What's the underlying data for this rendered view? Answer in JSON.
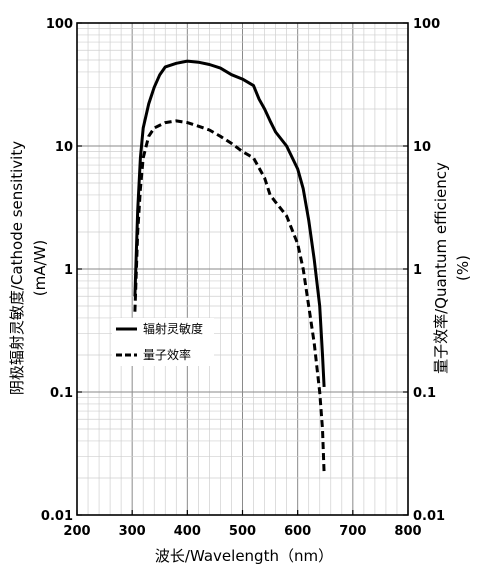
{
  "chart_data": {
    "type": "line",
    "xlabel": "波长/Wavelength（nm）",
    "ylabel_left_line1": "阴极辐射灵敏度/Cathode sensitivity",
    "ylabel_left_line2": "(mA/W)",
    "ylabel_right_line1": "量子效率/Quantum efficiency",
    "ylabel_right_line2": "(%)",
    "xlim": [
      200,
      800
    ],
    "ylim": [
      0.01,
      100
    ],
    "yscale": "log",
    "grid": true,
    "legend_position": "center-left",
    "x_ticks": [
      "200",
      "300",
      "400",
      "500",
      "600",
      "700",
      "800"
    ],
    "y_ticks_left": [
      "0.01",
      "0.1",
      "1",
      "10",
      "100"
    ],
    "y_ticks_right": [
      "0.01",
      "0.1",
      "1",
      "10",
      "100"
    ],
    "series": [
      {
        "name": "辐射灵敏度",
        "style": "solid",
        "color": "#000000",
        "points": [
          [
            305,
            0.6
          ],
          [
            310,
            3
          ],
          [
            315,
            8
          ],
          [
            320,
            14
          ],
          [
            330,
            22
          ],
          [
            340,
            30
          ],
          [
            350,
            38
          ],
          [
            360,
            44
          ],
          [
            380,
            47
          ],
          [
            400,
            49
          ],
          [
            420,
            48
          ],
          [
            440,
            46
          ],
          [
            460,
            43
          ],
          [
            480,
            38
          ],
          [
            500,
            35
          ],
          [
            520,
            31
          ],
          [
            530,
            24
          ],
          [
            540,
            20
          ],
          [
            550,
            16
          ],
          [
            560,
            13
          ],
          [
            580,
            10
          ],
          [
            600,
            6.5
          ],
          [
            610,
            4.5
          ],
          [
            620,
            2.5
          ],
          [
            630,
            1.2
          ],
          [
            640,
            0.5
          ],
          [
            645,
            0.2
          ],
          [
            648,
            0.11
          ]
        ]
      },
      {
        "name": "量子效率",
        "style": "dashed",
        "color": "#000000",
        "points": [
          [
            305,
            0.45
          ],
          [
            310,
            2
          ],
          [
            315,
            4.5
          ],
          [
            320,
            8
          ],
          [
            330,
            12
          ],
          [
            340,
            14
          ],
          [
            360,
            15.5
          ],
          [
            380,
            16
          ],
          [
            400,
            15.5
          ],
          [
            420,
            14.5
          ],
          [
            440,
            13.5
          ],
          [
            460,
            12
          ],
          [
            480,
            10.5
          ],
          [
            500,
            9
          ],
          [
            520,
            8
          ],
          [
            540,
            5.5
          ],
          [
            550,
            4
          ],
          [
            560,
            3.5
          ],
          [
            580,
            2.7
          ],
          [
            600,
            1.6
          ],
          [
            610,
            1
          ],
          [
            620,
            0.5
          ],
          [
            630,
            0.25
          ],
          [
            640,
            0.1
          ],
          [
            645,
            0.05
          ],
          [
            648,
            0.022
          ]
        ]
      }
    ]
  }
}
